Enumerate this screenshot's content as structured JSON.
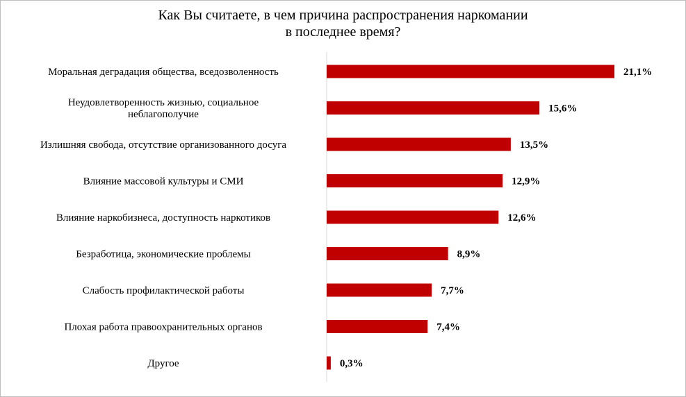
{
  "chart_data": {
    "type": "bar",
    "orientation": "horizontal",
    "title": [
      "Как Вы считаете, в чем причина распространения наркомании",
      "в последнее время?"
    ],
    "categories": [
      [
        "Моральная деградация общества, вседозволенность"
      ],
      [
        "Неудовлетворенность жизнью, социальное",
        "неблагополучие"
      ],
      [
        "Излишняя свобода, отсутствие организованного досуга"
      ],
      [
        "Влияние массовой культуры и СМИ"
      ],
      [
        "Влияние наркобизнеса, доступность наркотиков"
      ],
      [
        "Безработица, экономические проблемы"
      ],
      [
        "Слабость профилактической работы"
      ],
      [
        "Плохая работа правоохранительных органов"
      ],
      [
        "Другое"
      ]
    ],
    "values": [
      21.1,
      15.6,
      13.5,
      12.9,
      12.6,
      8.9,
      7.7,
      7.4,
      0.3
    ],
    "value_labels": [
      "21,1%",
      "15,6%",
      "13,5%",
      "12,9%",
      "12,6%",
      "8,9%",
      "7,7%",
      "7,4%",
      "0,3%"
    ],
    "bar_color": "#c00000",
    "axis_color": "#d9d9d9",
    "xlim": [
      0,
      21.1
    ],
    "grid": false,
    "legend": "none"
  }
}
